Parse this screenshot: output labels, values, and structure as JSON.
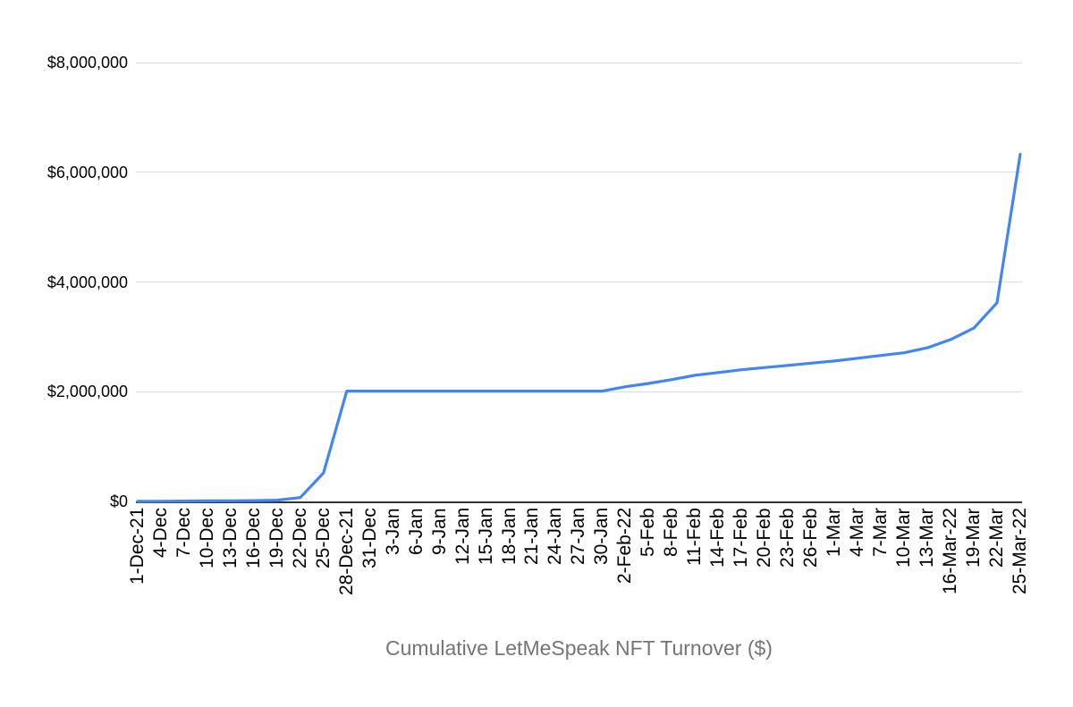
{
  "chart_data": {
    "type": "line",
    "title": "Cumulative LetMeSpeak NFT Turnover ($)",
    "xlabel": "",
    "ylabel": "",
    "legend": "none",
    "grid": "horizontal",
    "ylim": [
      0,
      8000000
    ],
    "y_tick_values": [
      0,
      2000000,
      4000000,
      6000000,
      8000000
    ],
    "y_tick_labels": [
      "$0",
      "$2,000,000",
      "$4,000,000",
      "$6,000,000",
      "$8,000,000"
    ],
    "categories": [
      "1-Dec-21",
      "4-Dec",
      "7-Dec",
      "10-Dec",
      "13-Dec",
      "16-Dec",
      "19-Dec",
      "22-Dec",
      "25-Dec",
      "28-Dec-21",
      "31-Dec",
      "3-Jan",
      "6-Jan",
      "9-Jan",
      "12-Jan",
      "15-Jan",
      "18-Jan",
      "21-Jan",
      "24-Jan",
      "27-Jan",
      "30-Jan",
      "2-Feb-22",
      "5-Feb",
      "8-Feb",
      "11-Feb",
      "14-Feb",
      "17-Feb",
      "20-Feb",
      "23-Feb",
      "26-Feb",
      "1-Mar",
      "4-Mar",
      "7-Mar",
      "10-Mar",
      "13-Mar",
      "16-Mar-22",
      "19-Mar",
      "22-Mar",
      "25-Mar-22"
    ],
    "series": [
      {
        "name": "Cumulative LetMeSpeak NFT Turnover ($)",
        "values": [
          2000,
          4000,
          6000,
          9000,
          12000,
          15000,
          22000,
          70000,
          520000,
          2010000,
          2010000,
          2010000,
          2010000,
          2010000,
          2010000,
          2010000,
          2010000,
          2010000,
          2010000,
          2010000,
          2010000,
          2090000,
          2150000,
          2220000,
          2300000,
          2350000,
          2400000,
          2440000,
          2480000,
          2520000,
          2560000,
          2610000,
          2660000,
          2710000,
          2800000,
          2950000,
          3160000,
          3620000,
          6330000
        ]
      }
    ]
  },
  "colors": {
    "line": "#4285f4",
    "grid": "#dcdcdc",
    "axis": "#333333",
    "tick_label": "#000000",
    "title": "#757575",
    "background": "#ffffff"
  }
}
